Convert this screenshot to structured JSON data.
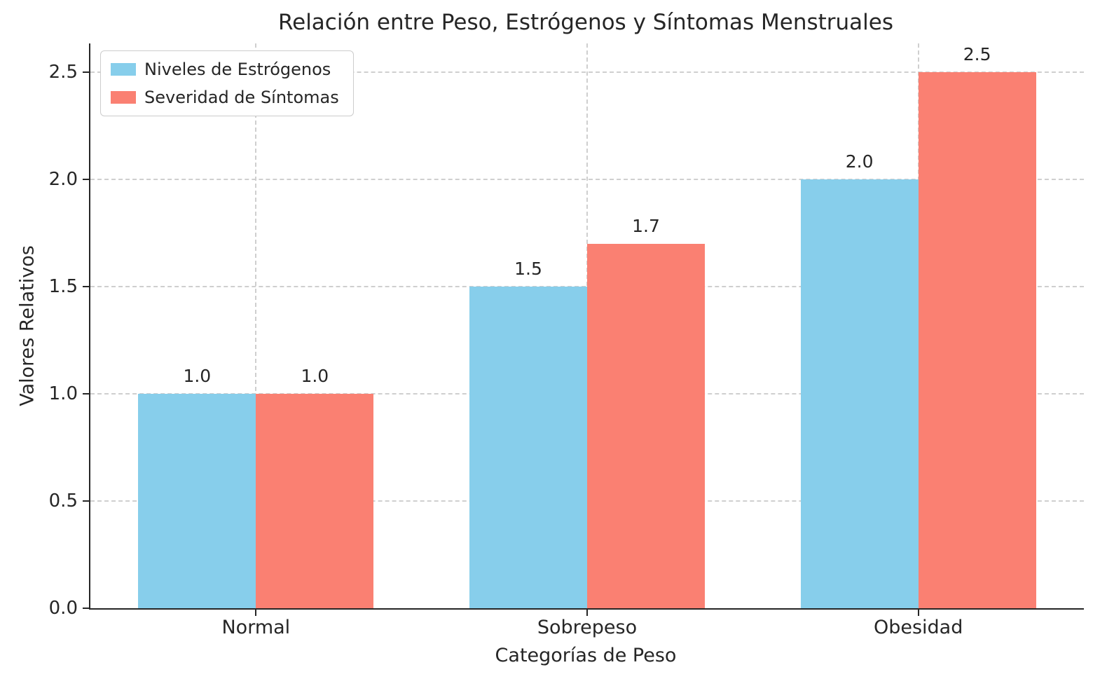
{
  "chart_data": {
    "type": "bar",
    "title": "Relación entre Peso, Estrógenos y Síntomas Menstruales",
    "xlabel": "Categorías de Peso",
    "ylabel": "Valores Relativos",
    "categories": [
      "Normal",
      "Sobrepeso",
      "Obesidad"
    ],
    "series": [
      {
        "name": "Niveles de Estrógenos",
        "color": "#87CEEB",
        "values": [
          1.0,
          1.5,
          2.0
        ]
      },
      {
        "name": "Severidad de Síntomas",
        "color": "#FA8072",
        "values": [
          1.0,
          1.7,
          2.5
        ]
      }
    ],
    "value_labels": {
      "series_0": [
        "1.0",
        "1.5",
        "2.0"
      ],
      "series_1": [
        "1.0",
        "1.7",
        "2.5"
      ]
    },
    "yticks": [
      0.0,
      0.5,
      1.0,
      1.5,
      2.0,
      2.5
    ],
    "ytick_labels": [
      "0.0",
      "0.5",
      "1.0",
      "1.5",
      "2.0",
      "2.5"
    ],
    "ylim": [
      0,
      2.634
    ],
    "grid": true,
    "grid_style": "dashed",
    "legend_position": "upper left",
    "colors": {
      "axis": "#262626",
      "grid": "#cfcfcf",
      "background": "#ffffff",
      "text": "#262626"
    }
  }
}
